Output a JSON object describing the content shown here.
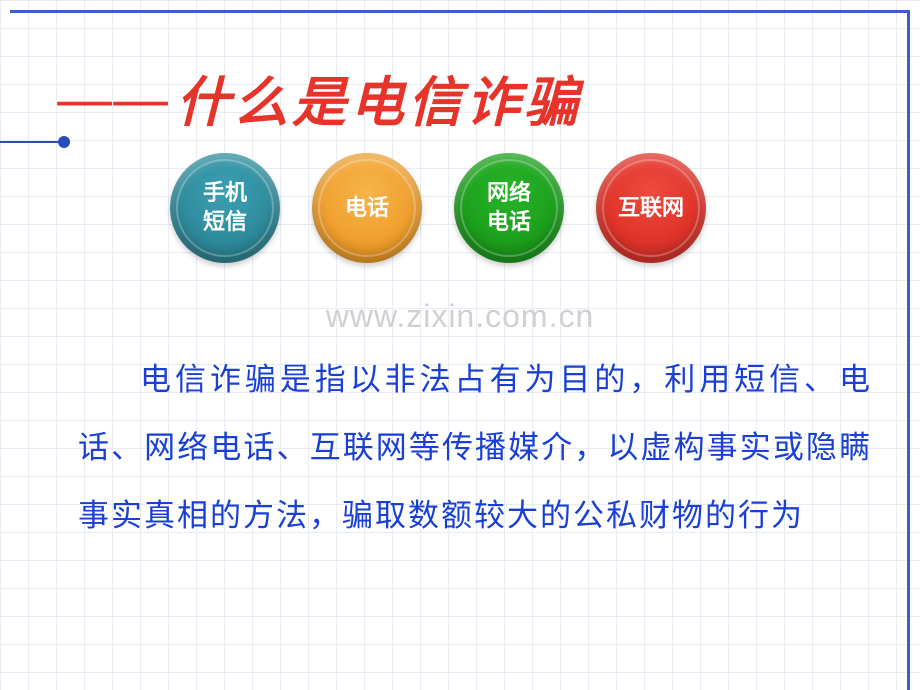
{
  "slide": {
    "background_color": "#ffffff",
    "grid_color": "#e8ecf4",
    "grid_size": 28,
    "border_color": "#3b5fc4",
    "title": {
      "dash": "——",
      "text": "什么是电信诈骗",
      "color": "#e6342a",
      "fontsize": 54,
      "font_family": "KaiTi",
      "accent_line_color": "#2a4db8"
    },
    "circles": [
      {
        "label_line1": "手机",
        "label_line2": "短信",
        "bg_color": "#2e8b9c",
        "gradient_top": "#3ba0b3",
        "gradient_bottom": "#26707e"
      },
      {
        "label_line1": "电话",
        "label_line2": "",
        "bg_color": "#f0a02e",
        "gradient_top": "#f6b44a",
        "gradient_bottom": "#d98815"
      },
      {
        "label_line1": "网络",
        "label_line2": "电话",
        "bg_color": "#1ca01c",
        "gradient_top": "#28b428",
        "gradient_bottom": "#148014"
      },
      {
        "label_line1": "互联网",
        "label_line2": "",
        "bg_color": "#e0342a",
        "gradient_top": "#ee4a40",
        "gradient_bottom": "#c22820"
      }
    ],
    "circle_style": {
      "diameter": 110,
      "fontsize": 22,
      "text_color": "#ffffff",
      "gap": 32
    },
    "watermark": {
      "text": "www.zixin.com.cn",
      "color": "#d0d0d0",
      "fontsize": 32
    },
    "body": {
      "text": "电信诈骗是指以非法占有为目的，利用短信、电话、网络电话、互联网等传播媒介，以虚构事实或隐瞒事实真相的方法，骗取数额较大的公私财物的行为",
      "color": "#1a3fd6",
      "fontsize": 31,
      "line_height": 2.2
    }
  }
}
